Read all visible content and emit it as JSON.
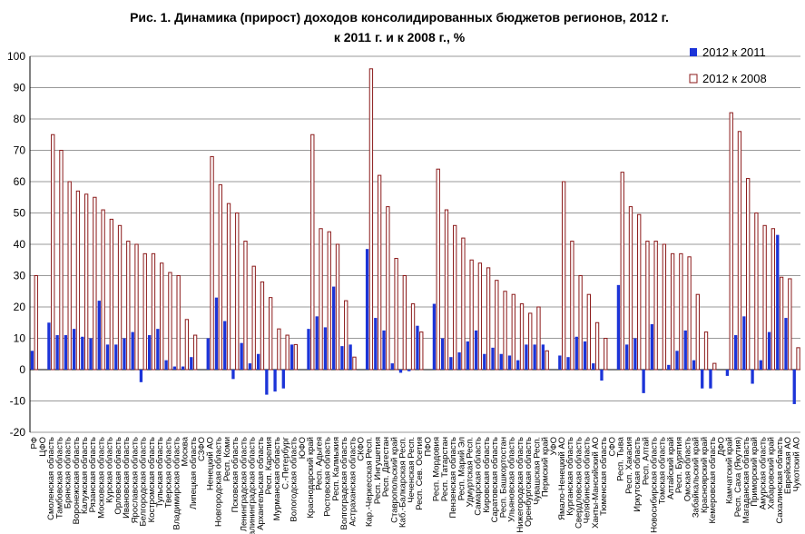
{
  "chart_data": {
    "type": "bar",
    "title": [
      "Рис. 1. Динамика (прирост) доходов консолидированных бюджетов регионов, 2012 г.",
      "к 2011 г. и к 2008 г., %"
    ],
    "categories": [
      "РФ",
      "ЦФО",
      "Смоленская область",
      "Тамбовская область",
      "Брянская область",
      "Воронежская область",
      "Калужская область",
      "Рязанская область",
      "Московская область",
      "Курская область",
      "Орловская область",
      "Ивановская область",
      "Ярославская область",
      "Белгородская область",
      "Костромская область",
      "Тульская область",
      "Тверская область",
      "Владимирская область",
      "Москва",
      "Липецкая область",
      "СЗФО",
      "Ненецкий АО",
      "Новгородская область",
      "Респ. Коми",
      "Псковская область",
      "Ленинградская область",
      "Калининградская область",
      "Архангельская область",
      "Респ. Карелия",
      "Мурманская область",
      "С.-Петербург",
      "Вологодская область",
      "ЮФО",
      "Краснодарский край",
      "Респ. Адыгея",
      "Ростовская область",
      "Респ. Калмыкия",
      "Волгоградская область",
      "Астраханская область",
      "СКФО",
      "Кар.-Черкесская Респ.",
      "Респ. Ингушетия",
      "Респ. Дагестан",
      "Ставропольский край",
      "Каб.-Балкарская Респ.",
      "Чеченская Респ.",
      "Респ. Сев. Осетия",
      "ПФО",
      "Респ. Мордовия",
      "Респ. Татарстан",
      "Пензенская область",
      "Респ. Марий Эл",
      "Удмуртская Респ.",
      "Самарская область",
      "Кировская область",
      "Саратовская область",
      "Респ. Башкортостан",
      "Ульяновская область",
      "Нижегородская область",
      "Оренбургская область",
      "Чувашская Респ.",
      "Пермский край",
      "УФО",
      "Ямало-Ненецкий АО",
      "Курганская область",
      "Свердловская область",
      "Челябинская область",
      "Ханты-Мансийский АО",
      "Тюменская область",
      "СФО",
      "Респ. Тыва",
      "Респ. Хакасия",
      "Иркутская область",
      "Респ. Алтай",
      "Новосибирская область",
      "Томская область",
      "Алтайский край",
      "Респ. Бурятия",
      "Омская область",
      "Забайкальский край",
      "Красноярский край",
      "Кемеровская область",
      "ДФО",
      "Камчатский край",
      "Респ. Саха (Якутия)",
      "Магаданская область",
      "Приморский край",
      "Амурская область",
      "Хабаровский край",
      "Сахалинская область",
      "Еврейская АО",
      "Чукотский АО"
    ],
    "series": [
      {
        "name": "2012 к 2011",
        "color": "#1c34d8",
        "values": [
          6,
          null,
          15,
          11,
          11,
          13,
          10.5,
          10,
          22,
          8,
          8,
          10,
          12,
          -4,
          11,
          13,
          3,
          1,
          1,
          4,
          null,
          10,
          23,
          15.5,
          -3,
          8.5,
          2,
          5,
          -8,
          -7,
          -6,
          8,
          null,
          13,
          17,
          13.5,
          26.5,
          7.5,
          8,
          null,
          38.5,
          16.5,
          12.5,
          2,
          -1,
          -0.5,
          14,
          null,
          21,
          10,
          4,
          5.5,
          9,
          12.5,
          5,
          7,
          5,
          4.5,
          3,
          8,
          8,
          8,
          null,
          4.5,
          4,
          10.5,
          9,
          2,
          -3.5,
          null,
          27,
          8,
          10,
          -7.5,
          14.5,
          0,
          1.5,
          6,
          12.5,
          3,
          -6,
          -6,
          null,
          -2,
          11,
          17,
          -4.5,
          3,
          12,
          43,
          16.5,
          -11
        ]
      },
      {
        "name": "2012 к 2008",
        "color": "#8b1a1a",
        "values": [
          30,
          null,
          75,
          70,
          60,
          57,
          56,
          55,
          51,
          48,
          46,
          41,
          40,
          37,
          37,
          34,
          31,
          30,
          16,
          11,
          null,
          68,
          59,
          53,
          50,
          41,
          33,
          28,
          23,
          13,
          11,
          8,
          null,
          75,
          45,
          44,
          40,
          22,
          4,
          null,
          96,
          62,
          52,
          35.5,
          30,
          21,
          12,
          null,
          64,
          51,
          46,
          42,
          35,
          34,
          32.5,
          28.5,
          25,
          24,
          21,
          18,
          20,
          6,
          null,
          60,
          41,
          30,
          24,
          15,
          10,
          null,
          63,
          52,
          49.5,
          41,
          41,
          40,
          37,
          37,
          36,
          24,
          12,
          2,
          null,
          82,
          76,
          61,
          50,
          46,
          45,
          29.5,
          29,
          7
        ]
      }
    ],
    "ylim": [
      -20,
      100
    ],
    "yticks": [
      -20,
      -10,
      0,
      10,
      20,
      30,
      40,
      50,
      60,
      70,
      80,
      90,
      100
    ],
    "grid": true,
    "legend": "top-right"
  }
}
